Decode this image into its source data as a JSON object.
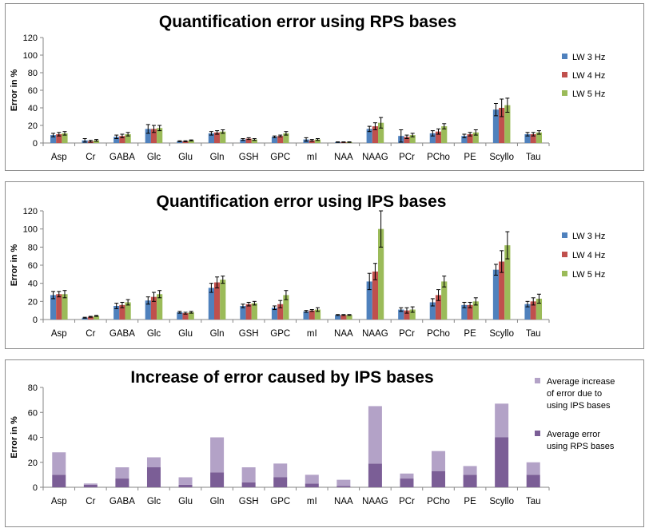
{
  "chart_data": [
    {
      "type": "bar",
      "title": "Quantification error using RPS bases",
      "xlabel": "",
      "ylabel": "Error in %",
      "ylim": [
        0,
        120
      ],
      "yticks": [
        0,
        20,
        40,
        60,
        80,
        100,
        120
      ],
      "legend_position": "right",
      "categories": [
        "Asp",
        "Cr",
        "GABA",
        "Glc",
        "Glu",
        "Gln",
        "GSH",
        "GPC",
        "mI",
        "NAA",
        "NAAG",
        "PCr",
        "PCho",
        "PE",
        "Scyllo",
        "Tau"
      ],
      "series": [
        {
          "name": "LW 3 Hz",
          "color": "#4f81bd",
          "values": [
            9,
            3,
            7,
            16,
            2,
            11,
            4,
            7,
            4,
            1,
            16,
            8,
            11,
            8,
            38,
            10
          ],
          "errors": [
            2,
            2,
            2,
            5,
            0.5,
            2,
            1,
            1,
            2,
            0.3,
            3,
            7,
            3,
            2,
            7,
            2
          ]
        },
        {
          "name": "LW 4 Hz",
          "color": "#c0504d",
          "values": [
            10,
            2,
            8,
            16,
            2,
            12,
            5,
            8,
            3,
            1,
            19,
            7,
            13,
            10,
            40,
            10
          ],
          "errors": [
            2,
            1,
            2,
            4,
            0.5,
            2,
            1,
            1,
            1,
            0.3,
            4,
            2,
            3,
            2,
            10,
            2
          ]
        },
        {
          "name": "LW 5 Hz",
          "color": "#9bbb59",
          "values": [
            11,
            3,
            10,
            17,
            3,
            13,
            4,
            11,
            4,
            1,
            23,
            9,
            19,
            12,
            43,
            12
          ],
          "errors": [
            2,
            1,
            2,
            3,
            0.5,
            2,
            1,
            2,
            1,
            0.3,
            6,
            2,
            3,
            3,
            8,
            2
          ]
        }
      ]
    },
    {
      "type": "bar",
      "title": "Quantification error using IPS bases",
      "xlabel": "",
      "ylabel": "Error in %",
      "ylim": [
        0,
        120
      ],
      "yticks": [
        0,
        20,
        40,
        60,
        80,
        100,
        120
      ],
      "legend_position": "right",
      "categories": [
        "Asp",
        "Cr",
        "GABA",
        "Glc",
        "Glu",
        "Gln",
        "GSH",
        "GPC",
        "mI",
        "NAA",
        "NAAG",
        "PCr",
        "PCho",
        "PE",
        "Scyllo",
        "Tau"
      ],
      "series": [
        {
          "name": "LW 3 Hz",
          "color": "#4f81bd",
          "values": [
            27,
            2,
            15,
            21,
            8,
            35,
            15,
            13,
            9,
            5,
            42,
            11,
            19,
            16,
            55,
            17
          ],
          "errors": [
            4,
            0.5,
            3,
            4,
            1,
            5,
            2,
            2,
            1,
            0.5,
            9,
            2,
            4,
            3,
            6,
            3
          ]
        },
        {
          "name": "LW 4 Hz",
          "color": "#c0504d",
          "values": [
            28,
            3,
            16,
            25,
            7,
            41,
            17,
            17,
            10,
            5,
            53,
            10,
            27,
            16,
            64,
            20
          ],
          "errors": [
            3,
            0.5,
            3,
            5,
            1,
            6,
            2,
            4,
            1,
            0.5,
            9,
            3,
            6,
            3,
            12,
            4
          ]
        },
        {
          "name": "LW 5 Hz",
          "color": "#9bbb59",
          "values": [
            28,
            4,
            19,
            28,
            8,
            44,
            18,
            27,
            11,
            5,
            100,
            11,
            42,
            20,
            82,
            23
          ],
          "errors": [
            4,
            0.5,
            3,
            4,
            1,
            4,
            2,
            5,
            2,
            0.5,
            20,
            3,
            6,
            4,
            15,
            5
          ]
        }
      ]
    },
    {
      "type": "bar",
      "stacked": true,
      "title": "Increase of error caused by IPS bases",
      "xlabel": "",
      "ylabel": "Error in %",
      "ylim": [
        0,
        80
      ],
      "yticks": [
        0,
        20,
        40,
        60,
        80
      ],
      "legend_position": "right",
      "categories": [
        "Asp",
        "Cr",
        "GABA",
        "Glc",
        "Glu",
        "Gln",
        "GSH",
        "GPC",
        "mI",
        "NAA",
        "NAAG",
        "PCr",
        "PCho",
        "PE",
        "Scyllo",
        "Tau"
      ],
      "series": [
        {
          "name": "Average error using RPS bases",
          "color": "#7b5e96",
          "values": [
            10,
            2,
            7,
            16,
            2,
            12,
            4,
            8,
            3,
            1,
            19,
            7,
            13,
            10,
            40,
            10
          ]
        },
        {
          "name": "Average increase of error due to using IPS bases",
          "color": "#b3a2c7",
          "values": [
            18,
            1,
            9,
            8,
            6,
            28,
            12,
            11,
            7,
            5,
            46,
            4,
            16,
            7,
            27,
            10
          ]
        }
      ]
    }
  ]
}
